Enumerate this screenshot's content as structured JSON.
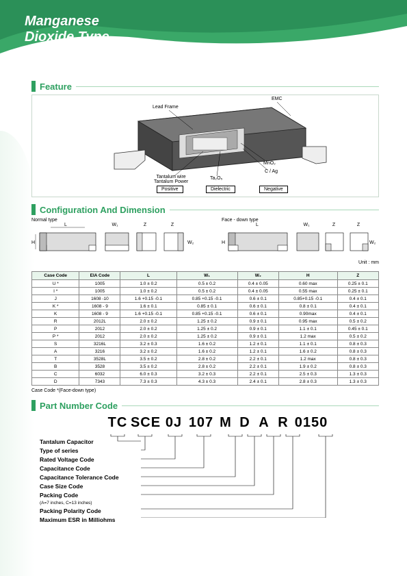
{
  "header": {
    "title_l1": "Manganese",
    "title_l2": "Dioxide Type"
  },
  "sections": {
    "feature": "Feature",
    "config": "Configuration And Dimension",
    "partnum": "Part Number Code"
  },
  "feature_labels": {
    "lead_frame": "Lead Frame",
    "emc": "EMC",
    "tantalum_wire": "Tantalum wire",
    "tantalum_power": "Tantalum Power",
    "ta2o5": "Ta₂O₅",
    "c_ag": "C / Ag",
    "mno2": "MnO₂",
    "positive": "Positive",
    "dielectric": "Dielectric",
    "negative": "Negative"
  },
  "config_labels": {
    "normal": "Normal type",
    "facedown": "Face - down type",
    "unit": "Unit : mm",
    "L": "L",
    "W1": "W₁",
    "Z": "Z",
    "H": "H",
    "W2": "W₂"
  },
  "dim_table": {
    "headers": [
      "Case Code",
      "EIA Code",
      "L",
      "W₁",
      "W₂",
      "H",
      "Z"
    ],
    "rows": [
      [
        "U *",
        "1005",
        "1.0 ± 0.2",
        "0.5 ± 0.2",
        "0.4 ± 0.05",
        "0.60 max",
        "0.25 ± 0.1"
      ],
      [
        "I *",
        "1005",
        "1.0 ± 0.2",
        "0.5 ± 0.2",
        "0.4 ± 0.05",
        "0.55 max",
        "0.25 ± 0.1"
      ],
      [
        "J",
        "1608 -10",
        "1.6 +0.15 -0.1",
        "0.85 +0.15 -0.1",
        "0.6 ± 0.1",
        "0.85+0.15 -0.1",
        "0.4 ± 0.1"
      ],
      [
        "K *",
        "1608 - 9",
        "1.6 ± 0.1",
        "0.85 ± 0.1",
        "0.6 ± 0.1",
        "0.8 ± 0.1",
        "0.4 ± 0.1"
      ],
      [
        "K",
        "1608 - 9",
        "1.6 +0.15 -0.1",
        "0.85 +0.15 -0.1",
        "0.6 ± 0.1",
        "0.90max",
        "0.4 ± 0.1"
      ],
      [
        "R",
        "2012L",
        "2.0 ± 0.2",
        "1.25 ± 0.2",
        "0.9 ± 0.1",
        "0.95 max",
        "0.5 ± 0.2"
      ],
      [
        "P",
        "2012",
        "2.0 ± 0.2",
        "1.25 ± 0.2",
        "0.9 ± 0.1",
        "1.1 ± 0.1",
        "0.45 ± 0.1"
      ],
      [
        "P *",
        "2012",
        "2.0 ± 0.2",
        "1.25 ± 0.2",
        "0.9 ± 0.1",
        "1.2 max",
        "0.5 ± 0.2"
      ],
      [
        "S",
        "3216L",
        "3.2 ± 0.3",
        "1.6 ± 0.2",
        "1.2 ± 0.1",
        "1.1 ± 0.1",
        "0.8 ± 0.3"
      ],
      [
        "A",
        "3216",
        "3.2 ± 0.2",
        "1.6 ± 0.2",
        "1.2 ± 0.1",
        "1.6 ± 0.2",
        "0.8 ± 0.3"
      ],
      [
        "T",
        "3528L",
        "3.5 ± 0.2",
        "2.8 ± 0.2",
        "2.2 ± 0.1",
        "1.2 max",
        "0.8 ± 0.3"
      ],
      [
        "B",
        "3528",
        "3.5 ± 0.2",
        "2.8 ± 0.2",
        "2.2 ± 0.1",
        "1.9 ± 0.2",
        "0.8 ± 0.3"
      ],
      [
        "C",
        "6032",
        "6.0 ± 0.3",
        "3.2 ± 0.3",
        "2.2 ± 0.1",
        "2.5 ± 0.3",
        "1.3 ± 0.3"
      ],
      [
        "D",
        "7343",
        "7.3 ± 0.3",
        "4.3 ± 0.3",
        "2.4 ± 0.1",
        "2.8 ± 0.3",
        "1.3 ± 0.3"
      ]
    ],
    "note": "Case Code *(Face-down type)"
  },
  "part_number": {
    "segments": [
      "TC",
      "SCE",
      "0J",
      "107",
      "M",
      "D",
      "A",
      "R",
      "0150"
    ],
    "labels": [
      "Tantalum Capacitor",
      "Type of series",
      "Rated Voltage Code",
      "Capacitance Code",
      "Capacitance Tolerance Code",
      "Case Size Code",
      "Packing Code",
      "Packing Polarity Code",
      "Maximum ESR in Milliohms"
    ],
    "packing_sub": "(A=7 inches, C=13 inches)"
  },
  "style": {
    "accent": "#2ea060",
    "accent_light": "#e8f5ec",
    "border": "#888888",
    "seg_x": [
      120,
      160,
      210,
      252,
      300,
      330,
      358,
      388,
      420
    ]
  }
}
